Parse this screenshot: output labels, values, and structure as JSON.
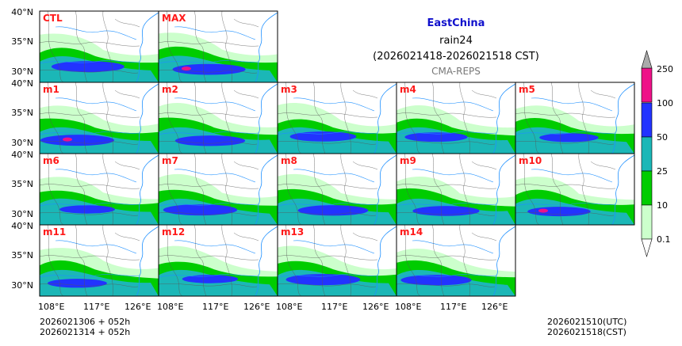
{
  "title": {
    "region": "EastChina",
    "variable": "rain24",
    "period": "(2026021418-2026021518 CST)",
    "source": "CMA-REPS"
  },
  "panels": [
    "CTL",
    "MAX",
    "m1",
    "m2",
    "m3",
    "m4",
    "m5",
    "m6",
    "m7",
    "m8",
    "m9",
    "m10",
    "m11",
    "m12",
    "m13",
    "m14"
  ],
  "axes": {
    "lat_labels": [
      "40°N",
      "35°N",
      "30°N"
    ],
    "lon_labels": [
      "108°E",
      "117°E",
      "126°E"
    ]
  },
  "colorbar": {
    "levels": [
      "0.1",
      "10",
      "25",
      "50",
      "100",
      "250"
    ],
    "colors": [
      "#ccffcc",
      "#00cc00",
      "#1bb7b7",
      "#2233ff",
      "#ee1188",
      "#aaaaaa"
    ]
  },
  "footer": {
    "init_line1": "2026021306  +  052h",
    "init_line2": "2026021314  +  052h",
    "valid_utc": "2026021510(UTC)",
    "valid_cst": "2026021518(CST)"
  }
}
